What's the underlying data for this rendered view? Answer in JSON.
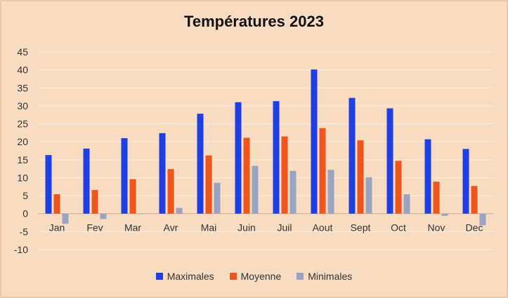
{
  "chart_data": {
    "type": "bar",
    "title": "Températures 2023",
    "categories": [
      "Jan",
      "Fev",
      "Mar",
      "Avr",
      "Mai",
      "Juin",
      "Juil",
      "Aout",
      "Sept",
      "Oct",
      "Nov",
      "Dec"
    ],
    "series": [
      {
        "name": "Maximales",
        "color": "#1f3fe6",
        "values": [
          16.3,
          18.1,
          21.0,
          22.4,
          27.8,
          31.0,
          31.3,
          40.1,
          32.2,
          29.3,
          20.7,
          18.0
        ]
      },
      {
        "name": "Moyenne",
        "color": "#f0561c",
        "values": [
          5.4,
          6.6,
          9.6,
          12.4,
          16.2,
          21.1,
          21.5,
          23.8,
          20.4,
          14.7,
          8.9,
          7.7
        ]
      },
      {
        "name": "Minimales",
        "color": "#9aa4c2",
        "values": [
          -2.8,
          -1.5,
          0.0,
          1.6,
          8.6,
          13.3,
          11.9,
          12.2,
          10.1,
          5.4,
          -0.6,
          -3.2
        ]
      }
    ],
    "yticks": [
      -10,
      -5,
      0,
      5,
      10,
      15,
      20,
      25,
      30,
      35,
      40,
      45
    ],
    "ylim": [
      -10,
      45
    ],
    "grid": true,
    "legend_position": "bottom"
  }
}
